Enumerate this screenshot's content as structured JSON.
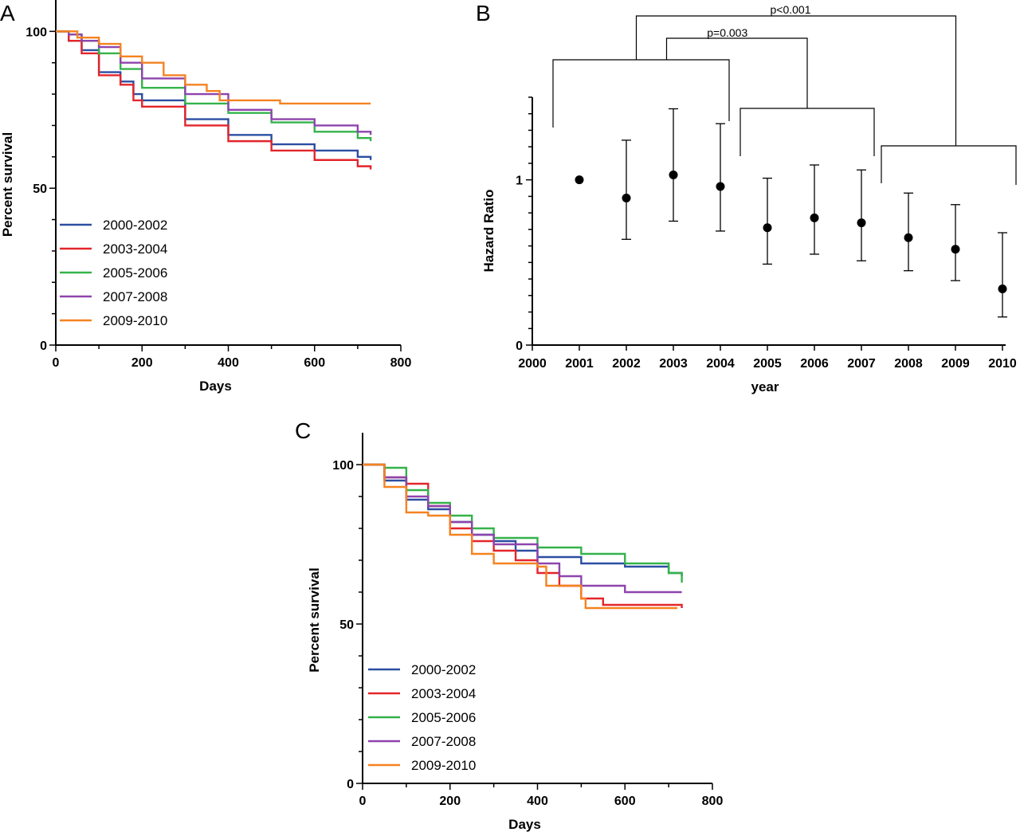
{
  "chart_data": [
    {
      "panel": "A",
      "type": "line",
      "xlabel": "Days",
      "ylabel": "Percent survival",
      "xlim": [
        0,
        800
      ],
      "ylim": [
        0,
        110
      ],
      "xticks": [
        "0",
        "200",
        "400",
        "600",
        "800"
      ],
      "yticks": [
        "0",
        "50",
        "100"
      ],
      "legend_placement": "lower-left",
      "series": [
        {
          "name": "2000-2002",
          "color": "#2b4ea2",
          "x": [
            0,
            30,
            60,
            100,
            150,
            180,
            200,
            300,
            400,
            500,
            600,
            700,
            730
          ],
          "y": [
            100,
            97,
            94,
            87,
            84,
            80,
            78,
            72,
            67,
            64,
            62,
            60,
            59
          ]
        },
        {
          "name": "2003-2004",
          "color": "#e3252b",
          "x": [
            0,
            30,
            60,
            100,
            150,
            180,
            200,
            300,
            400,
            500,
            600,
            700,
            730
          ],
          "y": [
            100,
            97,
            93,
            86,
            83,
            78,
            76,
            70,
            65,
            62,
            59,
            57,
            56
          ]
        },
        {
          "name": "2005-2006",
          "color": "#34b34a",
          "x": [
            0,
            30,
            60,
            100,
            150,
            200,
            300,
            400,
            500,
            600,
            700,
            730
          ],
          "y": [
            100,
            99,
            97,
            93,
            88,
            82,
            77,
            74,
            71,
            68,
            66,
            65
          ]
        },
        {
          "name": "2007-2008",
          "color": "#8e44ad",
          "x": [
            0,
            30,
            60,
            100,
            150,
            200,
            300,
            400,
            500,
            600,
            700,
            730
          ],
          "y": [
            100,
            99,
            97,
            95,
            90,
            85,
            80,
            75,
            72,
            70,
            68,
            67
          ]
        },
        {
          "name": "2009-2010",
          "color": "#f58220",
          "x": [
            0,
            50,
            100,
            150,
            200,
            250,
            300,
            350,
            380,
            400,
            500,
            520,
            600,
            700,
            730
          ],
          "y": [
            100,
            98,
            96,
            92,
            90,
            86,
            83,
            81,
            78,
            78,
            78,
            77,
            77,
            77,
            77
          ]
        }
      ]
    },
    {
      "panel": "B",
      "type": "scatter",
      "xlabel": "year",
      "ylabel": "Hazard Ratio",
      "xlim": [
        2000,
        2010
      ],
      "ylim": [
        0,
        1.5
      ],
      "xticks": [
        "2000",
        "2001",
        "2002",
        "2003",
        "2004",
        "2005",
        "2006",
        "2007",
        "2008",
        "2009",
        "2010"
      ],
      "yticks": [
        "0",
        "1"
      ],
      "points": [
        {
          "x": 2001,
          "y": 1.0,
          "lo": 1.0,
          "hi": 1.0
        },
        {
          "x": 2002,
          "y": 0.89,
          "lo": 0.64,
          "hi": 1.24
        },
        {
          "x": 2003,
          "y": 1.03,
          "lo": 0.75,
          "hi": 1.43
        },
        {
          "x": 2004,
          "y": 0.96,
          "lo": 0.69,
          "hi": 1.34
        },
        {
          "x": 2005,
          "y": 0.71,
          "lo": 0.49,
          "hi": 1.01
        },
        {
          "x": 2006,
          "y": 0.77,
          "lo": 0.55,
          "hi": 1.09
        },
        {
          "x": 2007,
          "y": 0.74,
          "lo": 0.51,
          "hi": 1.06
        },
        {
          "x": 2008,
          "y": 0.65,
          "lo": 0.45,
          "hi": 0.92
        },
        {
          "x": 2009,
          "y": 0.58,
          "lo": 0.39,
          "hi": 0.85
        },
        {
          "x": 2010,
          "y": 0.34,
          "lo": 0.17,
          "hi": 0.68
        }
      ],
      "annotations": [
        "p=0.003",
        "p<0.001"
      ],
      "groups": [
        [
          2001,
          2004
        ],
        [
          2005,
          2007
        ],
        [
          2008,
          2010
        ]
      ]
    },
    {
      "panel": "C",
      "type": "line",
      "xlabel": "Days",
      "ylabel": "Percent survival",
      "xlim": [
        0,
        800
      ],
      "ylim": [
        0,
        110
      ],
      "xticks": [
        "0",
        "200",
        "400",
        "600",
        "800"
      ],
      "yticks": [
        "0",
        "50",
        "100"
      ],
      "legend_placement": "lower-left",
      "series": [
        {
          "name": "2000-2002",
          "color": "#2b4ea2",
          "x": [
            0,
            50,
            100,
            150,
            200,
            250,
            300,
            350,
            400,
            500,
            600,
            700,
            730
          ],
          "y": [
            100,
            95,
            89,
            86,
            82,
            78,
            76,
            73,
            71,
            69,
            68,
            66,
            65
          ]
        },
        {
          "name": "2003-2004",
          "color": "#e3252b",
          "x": [
            0,
            50,
            100,
            150,
            200,
            250,
            300,
            350,
            400,
            450,
            500,
            550,
            600,
            700,
            730
          ],
          "y": [
            100,
            96,
            94,
            87,
            80,
            76,
            73,
            70,
            66,
            62,
            58,
            56,
            56,
            56,
            55
          ]
        },
        {
          "name": "2005-2006",
          "color": "#34b34a",
          "x": [
            0,
            50,
            100,
            150,
            200,
            250,
            300,
            400,
            500,
            600,
            700,
            730
          ],
          "y": [
            100,
            99,
            92,
            88,
            84,
            80,
            77,
            74,
            72,
            69,
            66,
            63
          ]
        },
        {
          "name": "2007-2008",
          "color": "#8e44ad",
          "x": [
            0,
            50,
            100,
            150,
            200,
            250,
            300,
            400,
            450,
            500,
            600,
            700,
            730
          ],
          "y": [
            100,
            96,
            90,
            87,
            82,
            78,
            75,
            69,
            65,
            62,
            60,
            60,
            60
          ]
        },
        {
          "name": "2009-2010",
          "color": "#f58220",
          "x": [
            0,
            50,
            100,
            150,
            200,
            250,
            300,
            400,
            420,
            500,
            510,
            600,
            720
          ],
          "y": [
            100,
            93,
            85,
            84,
            78,
            72,
            69,
            68,
            62,
            58,
            55,
            55,
            55
          ]
        }
      ]
    }
  ]
}
